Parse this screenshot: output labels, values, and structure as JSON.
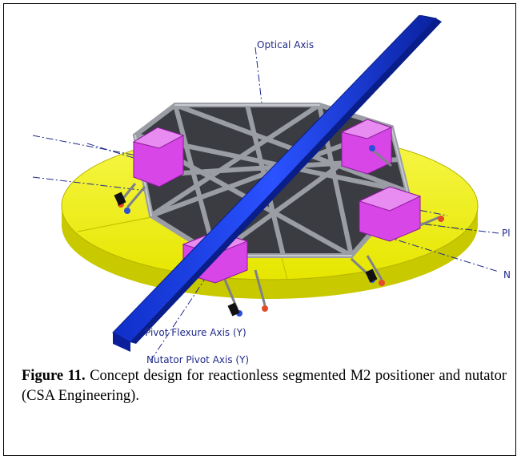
{
  "figure": {
    "labels": {
      "optical_axis": "Optical Axis",
      "pivot_flexure_axis": "Pivot Flexure Axis (Y)",
      "nutator_pivot_axis": "Nutator Pivot Axis (Y)",
      "right_label_1": "Pl",
      "right_label_2": "N"
    },
    "caption": {
      "number": "Figure 11.",
      "text": "Concept design for reactionless segmented M2 positioner and nutator (CSA Engineering)."
    },
    "colors": {
      "mirror": "#f2f20a",
      "beam": "#1a3fe0",
      "truss": "#8a8d93",
      "pads": "#d946e8",
      "axis_lines": "#1f2a8a"
    }
  }
}
